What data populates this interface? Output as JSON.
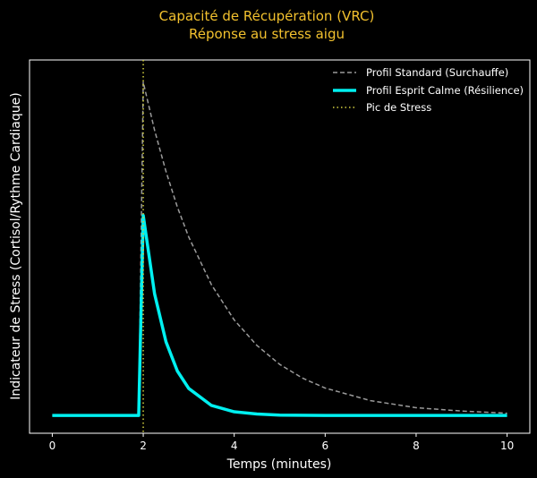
{
  "chart_data": {
    "type": "line",
    "title": "Capacité de Récupération (VRC)",
    "subtitle": "Réponse au stress aigu",
    "xlabel": "Temps (minutes)",
    "ylabel": "Indicateur de Stress (Cortisol/Rythme Cardiaque)",
    "xlim": [
      -0.5,
      10.5
    ],
    "ylim": [
      5.2,
      106
    ],
    "xticks": [
      0,
      2,
      4,
      6,
      8,
      10
    ],
    "yticks": [],
    "grid": false,
    "legend_position": "top-right",
    "series": [
      {
        "name": "Profil Standard (Surchauffe)",
        "style": "dashed",
        "color": "#9a9a9a",
        "x": [
          0,
          1.9,
          2,
          2.25,
          2.5,
          2.75,
          3,
          3.5,
          4,
          4.5,
          5,
          5.5,
          6,
          7,
          8,
          9,
          10
        ],
        "y": [
          10,
          10,
          100,
          87,
          75.9,
          66.3,
          58.2,
          45.3,
          35.8,
          28.9,
          23.8,
          20.1,
          17.4,
          14.0,
          12.1,
          11.2,
          10.6
        ]
      },
      {
        "name": "Profil Esprit Calme (Résilience)",
        "style": "solid",
        "color": "#00f0f0",
        "x": [
          0,
          1.9,
          2,
          2.25,
          2.5,
          2.75,
          3,
          3.5,
          4,
          4.5,
          5,
          6,
          8,
          10
        ],
        "y": [
          10,
          10,
          64,
          42.8,
          29.9,
          22.0,
          17.3,
          12.7,
          11.0,
          10.4,
          10.1,
          10,
          10,
          10
        ]
      }
    ],
    "vlines": [
      {
        "name": "Pic de Stress",
        "x": 2,
        "style": "dotted",
        "color": "#d4d040"
      }
    ]
  },
  "colors": {
    "title": "#f2c12e",
    "background": "#000000",
    "text": "#ffffff"
  }
}
